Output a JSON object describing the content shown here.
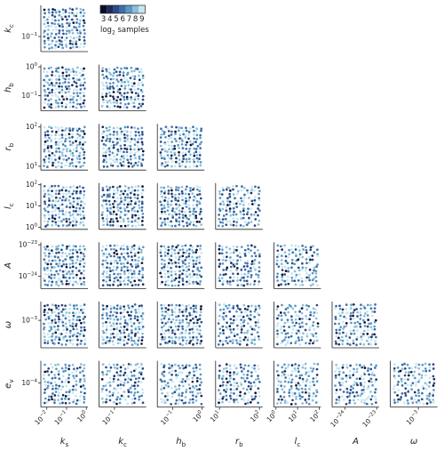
{
  "chart_data": {
    "type": "scatter",
    "title": "",
    "description_of_layout": "lower-triangular corner plot; each panel a sampled-point scatter coloured by log2 samples",
    "variables": [
      {
        "key": "ks",
        "label": "k",
        "sub": "s",
        "scale": "log",
        "range": [
          0.005,
          1.2
        ],
        "ticks": [
          {
            "v": 0.01,
            "base": "10",
            "exp": "−2"
          },
          {
            "v": 0.1,
            "base": "10",
            "exp": "−1"
          },
          {
            "v": 1,
            "base": "10",
            "exp": "0"
          }
        ]
      },
      {
        "key": "kc",
        "label": "k",
        "sub": "c",
        "scale": "log",
        "range": [
          0.03,
          1.2
        ],
        "ticks": [
          {
            "v": 0.1,
            "base": "10",
            "exp": "−1"
          }
        ]
      },
      {
        "key": "hb",
        "label": "h",
        "sub": "b",
        "scale": "log",
        "range": [
          0.03,
          1.2
        ],
        "ticks": [
          {
            "v": 0.1,
            "base": "10",
            "exp": "−1"
          },
          {
            "v": 1,
            "base": "10",
            "exp": "0"
          }
        ]
      },
      {
        "key": "rb",
        "label": "r",
        "sub": "b",
        "scale": "log",
        "range": [
          8,
          120
        ],
        "ticks": [
          {
            "v": 10,
            "base": "10",
            "exp": "1"
          },
          {
            "v": 100,
            "base": "10",
            "exp": "2"
          }
        ]
      },
      {
        "key": "lc",
        "label": "l",
        "sub": "c",
        "scale": "log",
        "range": [
          0.8,
          120
        ],
        "ticks": [
          {
            "v": 1,
            "base": "10",
            "exp": "0"
          },
          {
            "v": 10,
            "base": "10",
            "exp": "1"
          },
          {
            "v": 100,
            "base": "10",
            "exp": "2"
          }
        ]
      },
      {
        "key": "A",
        "label": "A",
        "sub": "",
        "scale": "log",
        "range": [
          4e-25,
          1.2e-23
        ],
        "ticks": [
          {
            "v": 1e-24,
            "base": "10",
            "exp": "−24"
          },
          {
            "v": 1e-23,
            "base": "10",
            "exp": "−23"
          }
        ]
      },
      {
        "key": "omega",
        "label": "ω",
        "sub": "",
        "scale": "log",
        "range": [
          0.0002,
          0.003
        ],
        "ticks": [
          {
            "v": 0.001,
            "base": "10",
            "exp": "−3"
          }
        ]
      },
      {
        "key": "ev",
        "label": "e",
        "sub": "v",
        "scale": "log",
        "range": [
          3e-05,
          0.0003
        ],
        "ticks": [
          {
            "v": 0.0001,
            "base": "10",
            "exp": "−4"
          }
        ]
      }
    ],
    "colorbar": {
      "label": "log",
      "label_sub": "2",
      "label_rest": " samples",
      "ticks": [
        "3",
        "4",
        "5",
        "6",
        "7",
        "8",
        "9"
      ],
      "colors": [
        "#0b0c2a",
        "#1f2a5a",
        "#2c4a86",
        "#3b6fa8",
        "#5b97c4",
        "#8cbfd8",
        "#c6e5ef"
      ]
    },
    "grid": false,
    "legend_position": "top-left"
  }
}
